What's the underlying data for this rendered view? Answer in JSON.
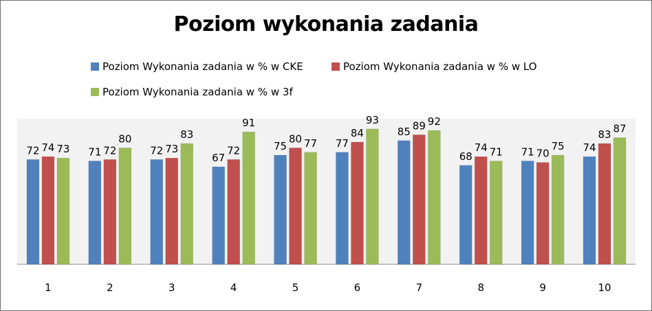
{
  "chart_data": {
    "type": "bar",
    "title": "Poziom wykonania zadania",
    "xlabel": "",
    "ylabel": "",
    "categories": [
      "1",
      "2",
      "3",
      "4",
      "5",
      "6",
      "7",
      "8",
      "9",
      "10"
    ],
    "series": [
      {
        "name": "Poziom Wykonania zadania w % w CKE",
        "color": "#4f81bd",
        "values": [
          72,
          71,
          72,
          67,
          75,
          77,
          85,
          68,
          71,
          74
        ]
      },
      {
        "name": "Poziom Wykonania zadania w % w LO",
        "color": "#c0504d",
        "values": [
          74,
          72,
          73,
          72,
          80,
          84,
          89,
          74,
          70,
          83
        ]
      },
      {
        "name": "Poziom Wykonania zadania w % w 3f",
        "color": "#9bbb59",
        "values": [
          73,
          80,
          83,
          91,
          77,
          93,
          92,
          71,
          75,
          87
        ]
      }
    ],
    "ylim": [
      0,
      100
    ],
    "grid": false,
    "legend": "top",
    "plot_background": "#f2f2f2"
  }
}
